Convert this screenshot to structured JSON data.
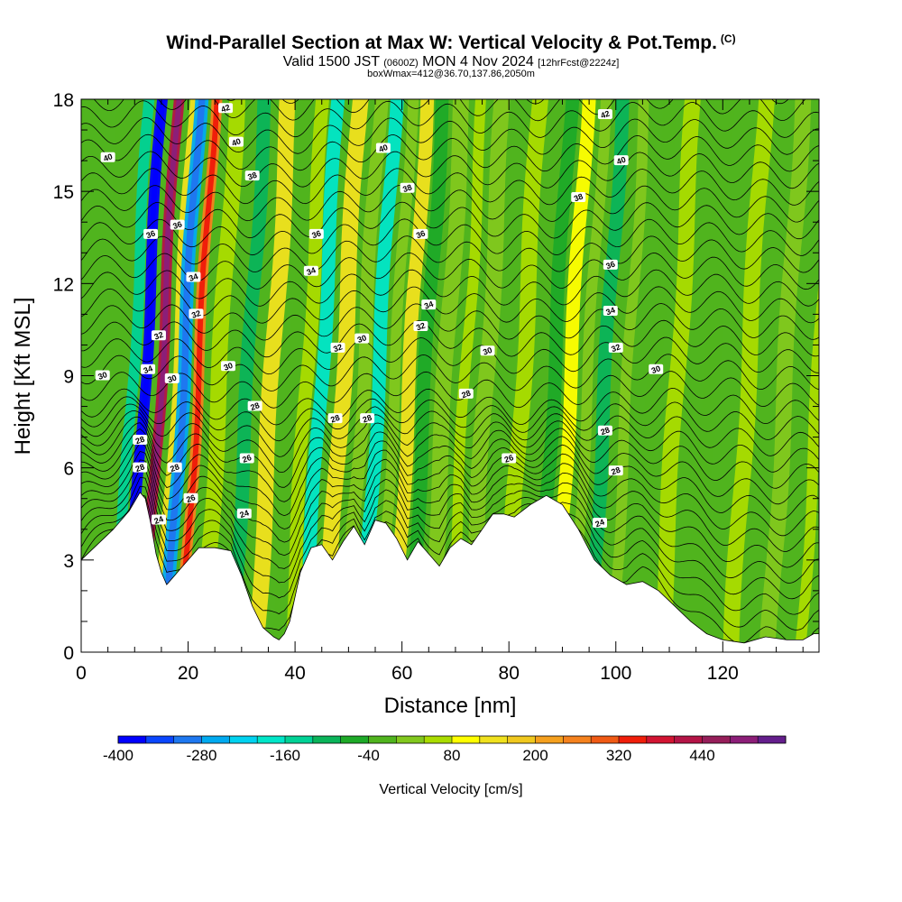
{
  "titles": {
    "main": "Wind-Parallel Section at Max W: Vertical Velocity & Pot.Temp.",
    "copyright": "(C)",
    "valid_a": "Valid 1500 JST",
    "valid_zulu": "(0600Z)",
    "valid_b": "MON 4 Nov 2024",
    "forecast": "[12hrFcst@2224z]",
    "box": "boxWmax=412@36.70,137.86,2050m"
  },
  "chart_data": {
    "type": "heatmap",
    "title": "Wind-Parallel Section at Max W: Vertical Velocity & Pot.Temp.",
    "xlabel": "Distance [nm]",
    "ylabel": "Height [Kft MSL]",
    "xlim": [
      0,
      138
    ],
    "ylim": [
      0,
      18
    ],
    "x_ticks": [
      0,
      20,
      40,
      60,
      80,
      100,
      120
    ],
    "y_ticks": [
      0,
      3,
      6,
      9,
      12,
      15,
      18
    ],
    "grid": false,
    "colorbar": {
      "label": "Vertical Velocity [cm/s]",
      "tick_labels": [
        -400,
        -280,
        -160,
        -40,
        80,
        200,
        320,
        440
      ],
      "levels": [
        -400,
        -360,
        -320,
        -280,
        -240,
        -200,
        -160,
        -120,
        -80,
        -40,
        0,
        40,
        80,
        120,
        160,
        200,
        240,
        280,
        320,
        360,
        400,
        440,
        480,
        520
      ],
      "colors": [
        "#0000ff",
        "#0a46ff",
        "#1e78f0",
        "#00aaf0",
        "#00d2f0",
        "#00e6c8",
        "#00d296",
        "#0ab45a",
        "#1eaa28",
        "#50b41e",
        "#82c81e",
        "#aadc00",
        "#ffff00",
        "#f0e11e",
        "#f0c81e",
        "#f5a01e",
        "#f5821e",
        "#f05a14",
        "#f01e0a",
        "#d21432",
        "#b41446",
        "#961e5a",
        "#8c1e78",
        "#641e8c"
      ]
    },
    "terrain_profile": {
      "x": [
        0,
        3,
        6,
        9,
        11,
        12,
        13,
        14,
        15,
        16,
        17,
        18,
        20,
        22,
        25,
        28,
        30,
        32,
        34,
        36,
        37,
        38,
        39,
        40,
        41,
        43,
        45,
        47,
        49,
        51,
        53,
        55,
        57,
        59,
        61,
        63,
        65,
        67,
        69,
        71,
        73,
        75,
        77,
        79,
        81,
        84,
        87,
        90,
        93,
        96,
        99,
        102,
        105,
        108,
        111,
        114,
        117,
        120,
        124,
        128,
        132,
        135,
        137,
        138
      ],
      "height_kft": [
        3.0,
        3.5,
        4.0,
        4.6,
        5.2,
        5.0,
        4.2,
        3.2,
        2.6,
        2.2,
        2.4,
        2.6,
        3.0,
        3.4,
        3.4,
        3.3,
        2.5,
        1.5,
        0.8,
        0.5,
        0.4,
        0.6,
        1.0,
        1.8,
        2.6,
        3.4,
        3.5,
        3.0,
        3.6,
        4.1,
        3.5,
        4.3,
        4.2,
        3.7,
        3.0,
        3.6,
        3.2,
        2.8,
        3.4,
        3.7,
        3.5,
        4.0,
        4.5,
        4.5,
        4.4,
        4.8,
        5.1,
        4.8,
        4.0,
        3.0,
        2.5,
        2.2,
        2.3,
        2.0,
        1.5,
        1.0,
        0.6,
        0.4,
        0.3,
        0.5,
        0.4,
        0.4,
        0.6,
        0.6
      ]
    },
    "velocity_bands": [
      {
        "x": 5,
        "width": 4,
        "value_cm_s": -40
      },
      {
        "x": 9,
        "width": 2,
        "value_cm_s": -160
      },
      {
        "x": 11.5,
        "width": 2,
        "value_cm_s": -380
      },
      {
        "x": 14,
        "width": 2,
        "value_cm_s": 400
      },
      {
        "x": 16.5,
        "width": 1.5,
        "value_cm_s": 120
      },
      {
        "x": 18,
        "width": 2.5,
        "value_cm_s": -280
      },
      {
        "x": 21,
        "width": 2,
        "value_cm_s": 240
      },
      {
        "x": 25,
        "width": 3,
        "value_cm_s": 40
      },
      {
        "x": 30,
        "width": 2.5,
        "value_cm_s": -100
      },
      {
        "x": 34,
        "width": 3,
        "value_cm_s": 140
      },
      {
        "x": 38,
        "width": 2.5,
        "value_cm_s": -20
      },
      {
        "x": 41,
        "width": 2.5,
        "value_cm_s": 60
      },
      {
        "x": 44,
        "width": 2.5,
        "value_cm_s": -200
      },
      {
        "x": 48,
        "width": 3,
        "value_cm_s": 120
      },
      {
        "x": 52,
        "width": 2.5,
        "value_cm_s": 20
      },
      {
        "x": 55,
        "width": 2.5,
        "value_cm_s": -200
      },
      {
        "x": 58,
        "width": 2,
        "value_cm_s": 20
      },
      {
        "x": 60.5,
        "width": 2.5,
        "value_cm_s": 130
      },
      {
        "x": 63.5,
        "width": 2.5,
        "value_cm_s": -80
      },
      {
        "x": 67,
        "width": 3,
        "value_cm_s": 20
      },
      {
        "x": 71,
        "width": 2,
        "value_cm_s": 60
      },
      {
        "x": 75,
        "width": 3,
        "value_cm_s": 30
      },
      {
        "x": 82,
        "width": 3,
        "value_cm_s": 50
      },
      {
        "x": 88,
        "width": 2.5,
        "value_cm_s": -60
      },
      {
        "x": 91,
        "width": 2.5,
        "value_cm_s": 80
      },
      {
        "x": 94,
        "width": 2,
        "value_cm_s": 20
      },
      {
        "x": 97,
        "width": 2.5,
        "value_cm_s": -120
      },
      {
        "x": 101,
        "width": 2,
        "value_cm_s": 30
      },
      {
        "x": 106,
        "width": 2.5,
        "value_cm_s": -30
      },
      {
        "x": 110,
        "width": 3,
        "value_cm_s": 40
      },
      {
        "x": 116,
        "width": 3,
        "value_cm_s": -30
      },
      {
        "x": 123,
        "width": 3,
        "value_cm_s": 50
      },
      {
        "x": 130,
        "width": 3,
        "value_cm_s": 20
      },
      {
        "x": 136,
        "width": 2,
        "value_cm_s": 70
      }
    ],
    "theta_contours": {
      "levels": [
        24,
        26,
        28,
        30,
        32,
        34,
        36,
        38,
        40,
        42
      ],
      "labels": [
        {
          "text": "42",
          "x": 27,
          "y": 17.7
        },
        {
          "text": "40",
          "x": 29,
          "y": 16.6
        },
        {
          "text": "40",
          "x": 5,
          "y": 16.1
        },
        {
          "text": "38",
          "x": 32,
          "y": 15.5
        },
        {
          "text": "36",
          "x": 13,
          "y": 13.6
        },
        {
          "text": "36",
          "x": 18,
          "y": 13.9
        },
        {
          "text": "34",
          "x": 21,
          "y": 12.2
        },
        {
          "text": "32",
          "x": 21.5,
          "y": 11.0
        },
        {
          "text": "32",
          "x": 14.5,
          "y": 10.3
        },
        {
          "text": "34",
          "x": 12.5,
          "y": 9.2
        },
        {
          "text": "30",
          "x": 17,
          "y": 8.9
        },
        {
          "text": "30",
          "x": 4,
          "y": 9.0
        },
        {
          "text": "30",
          "x": 27.5,
          "y": 9.3
        },
        {
          "text": "28",
          "x": 11,
          "y": 6.9
        },
        {
          "text": "28",
          "x": 11,
          "y": 6.0
        },
        {
          "text": "28",
          "x": 17.5,
          "y": 6.0
        },
        {
          "text": "26",
          "x": 20.5,
          "y": 5.0
        },
        {
          "text": "24",
          "x": 14.5,
          "y": 4.3
        },
        {
          "text": "28",
          "x": 32.5,
          "y": 8.0
        },
        {
          "text": "26",
          "x": 31,
          "y": 6.3
        },
        {
          "text": "24",
          "x": 30.5,
          "y": 4.5
        },
        {
          "text": "36",
          "x": 44,
          "y": 13.6
        },
        {
          "text": "34",
          "x": 43,
          "y": 12.4
        },
        {
          "text": "32",
          "x": 48,
          "y": 9.9
        },
        {
          "text": "30",
          "x": 52.5,
          "y": 10.2
        },
        {
          "text": "28",
          "x": 47.5,
          "y": 7.6
        },
        {
          "text": "28",
          "x": 53.5,
          "y": 7.6
        },
        {
          "text": "40",
          "x": 56.5,
          "y": 16.4
        },
        {
          "text": "38",
          "x": 61,
          "y": 15.1
        },
        {
          "text": "36",
          "x": 63.5,
          "y": 13.6
        },
        {
          "text": "34",
          "x": 65,
          "y": 11.3
        },
        {
          "text": "32",
          "x": 63.5,
          "y": 10.6
        },
        {
          "text": "30",
          "x": 76,
          "y": 9.8
        },
        {
          "text": "28",
          "x": 72,
          "y": 8.4
        },
        {
          "text": "26",
          "x": 80,
          "y": 6.3
        },
        {
          "text": "42",
          "x": 98,
          "y": 17.5
        },
        {
          "text": "40",
          "x": 101,
          "y": 16.0
        },
        {
          "text": "38",
          "x": 93,
          "y": 14.8
        },
        {
          "text": "36",
          "x": 99,
          "y": 12.6
        },
        {
          "text": "34",
          "x": 99,
          "y": 11.1
        },
        {
          "text": "32",
          "x": 100,
          "y": 9.9
        },
        {
          "text": "30",
          "x": 107.5,
          "y": 9.2
        },
        {
          "text": "28",
          "x": 98,
          "y": 7.2
        },
        {
          "text": "28",
          "x": 100,
          "y": 5.9
        },
        {
          "text": "24",
          "x": 97,
          "y": 4.2
        }
      ]
    }
  }
}
